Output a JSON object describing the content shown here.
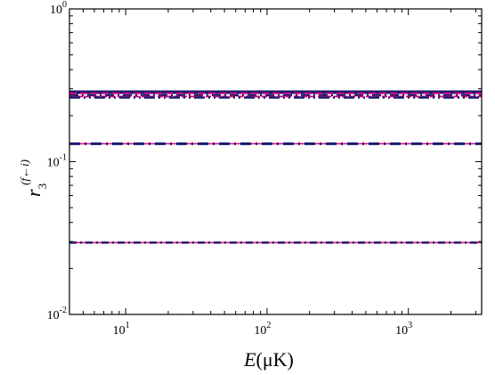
{
  "chart_data": {
    "type": "line",
    "x_axis": {
      "label_var": "E",
      "label_unit": "(μK)",
      "scale": "log",
      "range": [
        4,
        3300
      ],
      "ticks": [
        {
          "base": "10",
          "exp": "1",
          "value": 10
        },
        {
          "base": "10",
          "exp": "2",
          "value": 100
        },
        {
          "base": "10",
          "exp": "3",
          "value": 1000
        }
      ]
    },
    "y_axis": {
      "label_var": "r",
      "label_sub": "3",
      "label_sup": "(f←i)",
      "scale": "log",
      "range": [
        0.01,
        1
      ],
      "ticks": [
        {
          "base": "10",
          "exp": "-2",
          "value": 0.01
        },
        {
          "base": "10",
          "exp": "-1",
          "value": 0.1
        },
        {
          "base": "10",
          "exp": "0",
          "value": 1
        }
      ]
    },
    "grid": false,
    "legend": "none",
    "series": [
      {
        "x": [
          4,
          3300
        ],
        "y": [
          0.285,
          0.285
        ],
        "color": "#1a1a6e",
        "dash": "solid",
        "width": 4
      },
      {
        "x": [
          4,
          3300
        ],
        "y": [
          0.28,
          0.28
        ],
        "color": "#e0007a",
        "dash": "8 4",
        "width": 2
      },
      {
        "x": [
          4,
          3300
        ],
        "y": [
          0.272,
          0.272
        ],
        "color": "#1a1a6e",
        "dash": "10 4 2 4",
        "width": 2.5
      },
      {
        "x": [
          4,
          3300
        ],
        "y": [
          0.267,
          0.267
        ],
        "color": "#e0007a",
        "dash": "6 3",
        "width": 2
      },
      {
        "x": [
          4,
          3300
        ],
        "y": [
          0.263,
          0.263
        ],
        "color": "#1a1a6e",
        "dash": "12 4 2 4 2 4",
        "width": 2.5
      },
      {
        "x": [
          4,
          3300
        ],
        "y": [
          0.131,
          0.131
        ],
        "color": "#e0007a",
        "dash": "solid",
        "width": 1.5
      },
      {
        "x": [
          4,
          3300
        ],
        "y": [
          0.131,
          0.131
        ],
        "color": "#1a1a6e",
        "dash": "12 5 2 5",
        "width": 3
      },
      {
        "x": [
          4,
          3300
        ],
        "y": [
          0.0295,
          0.0295
        ],
        "color": "#e0007a",
        "dash": "solid",
        "width": 1.5
      },
      {
        "x": [
          4,
          3300
        ],
        "y": [
          0.0295,
          0.0295
        ],
        "color": "#1a1a6e",
        "dash": "8 4 2 4",
        "width": 2.5
      }
    ]
  }
}
